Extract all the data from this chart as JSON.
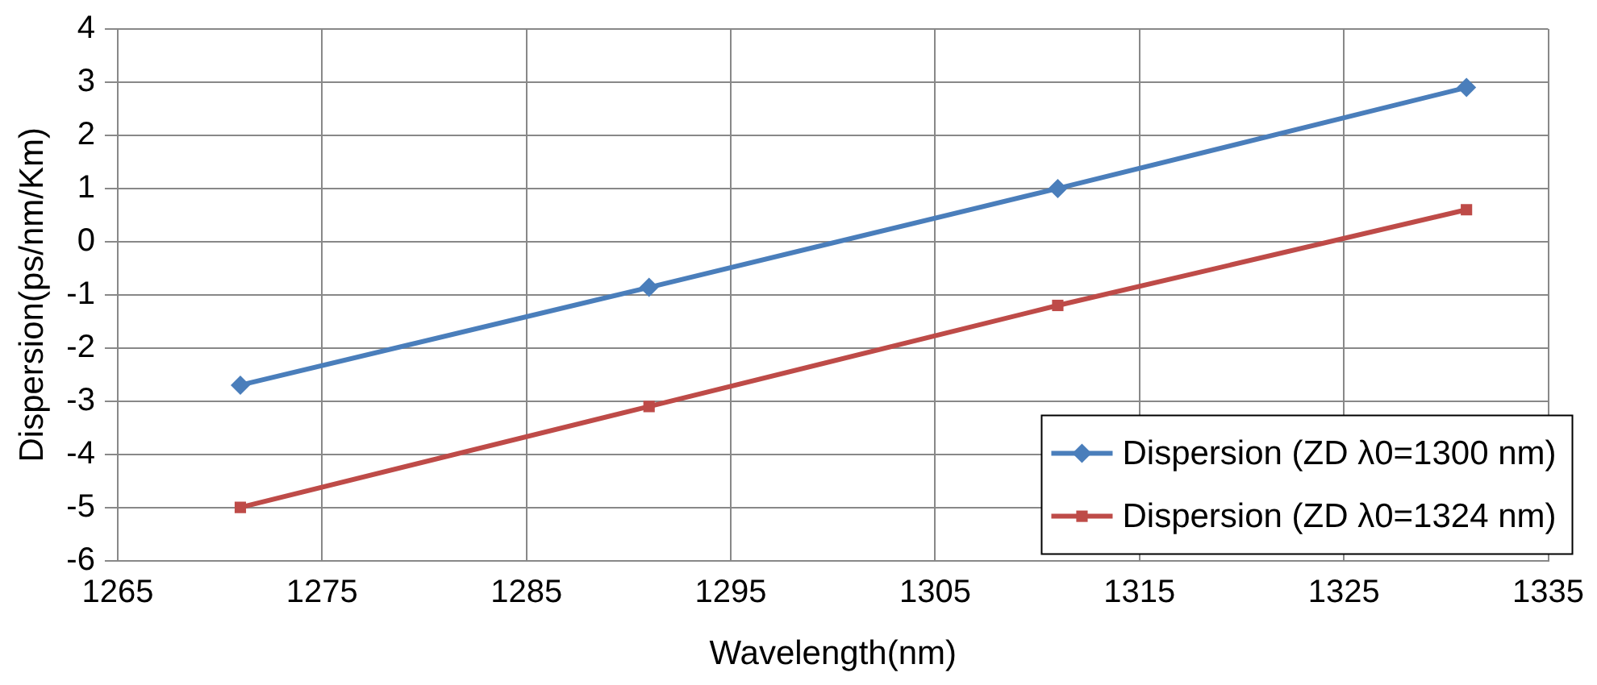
{
  "chart_data": {
    "type": "line",
    "xlabel": "Wavelength(nm)",
    "ylabel": "Dispersion(ps/nm/Km)",
    "x": [
      1271,
      1291,
      1311,
      1331
    ],
    "series": [
      {
        "name": "Dispersion (ZD λ0=1300 nm)",
        "color": "#4a7ebb",
        "marker": "diamond",
        "values": [
          -2.7,
          -0.86,
          1.0,
          2.9
        ]
      },
      {
        "name": "Dispersion (ZD λ0=1324 nm)",
        "color": "#be4b48",
        "marker": "square",
        "values": [
          -5.0,
          -3.1,
          -1.2,
          0.6
        ]
      }
    ],
    "xlim": [
      1265,
      1335
    ],
    "xticks": [
      1265,
      1275,
      1285,
      1295,
      1305,
      1315,
      1325,
      1335
    ],
    "ylim": [
      -6,
      4
    ],
    "yticks": [
      -6,
      -5,
      -4,
      -3,
      -2,
      -1,
      0,
      1,
      2,
      3,
      4
    ],
    "grid": true,
    "legend": "bottom right",
    "line_style": "solid"
  }
}
